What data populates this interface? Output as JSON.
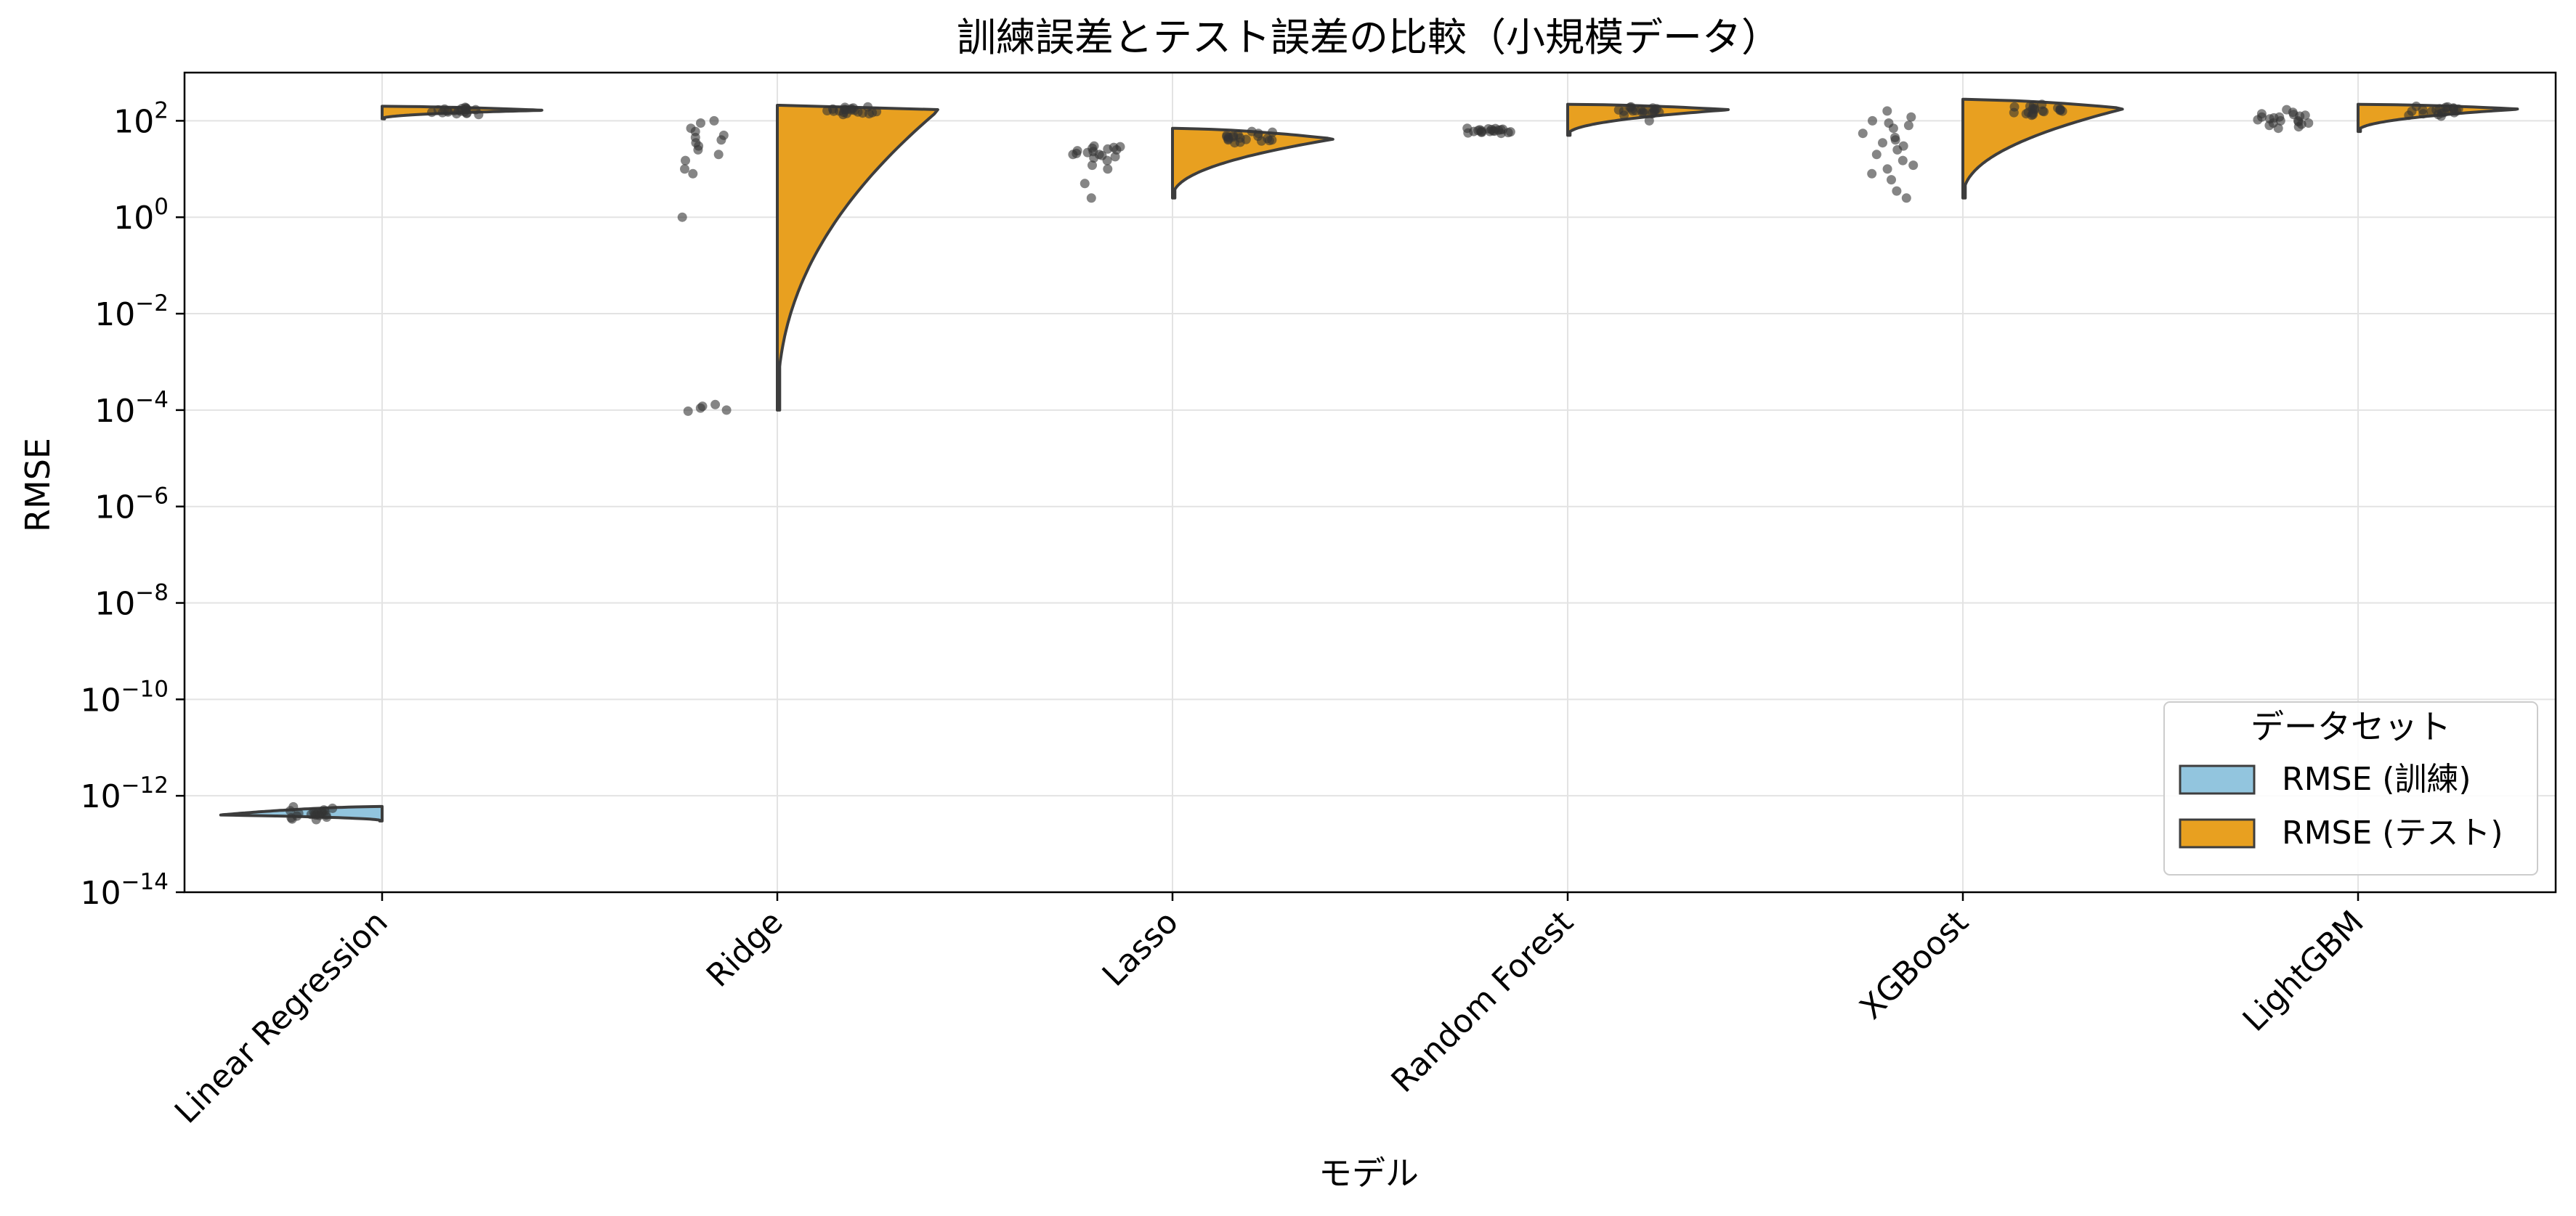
{
  "chart_data": {
    "type": "violin",
    "title": "訓練誤差とテスト誤差の比較（小規模データ）",
    "xlabel": "モデル",
    "ylabel": "RMSE",
    "yscale": "log",
    "ylim": [
      1e-14,
      1000
    ],
    "y_ticks": [
      {
        "value": 1e-14,
        "base": "10",
        "exp": "−14"
      },
      {
        "value": 1e-12,
        "base": "10",
        "exp": "−12"
      },
      {
        "value": 1e-10,
        "base": "10",
        "exp": "−10"
      },
      {
        "value": 1e-08,
        "base": "10",
        "exp": "−8"
      },
      {
        "value": 1e-06,
        "base": "10",
        "exp": "−6"
      },
      {
        "value": 0.0001,
        "base": "10",
        "exp": "−4"
      },
      {
        "value": 0.01,
        "base": "10",
        "exp": "−2"
      },
      {
        "value": 1,
        "base": "10",
        "exp": "0"
      },
      {
        "value": 100,
        "base": "10",
        "exp": "2"
      }
    ],
    "grid": true,
    "categories": [
      "Linear Regression",
      "Ridge",
      "Lasso",
      "Random Forest",
      "XGBoost",
      "LightGBM"
    ],
    "legend": {
      "title": "データセット",
      "placement": "lower-right",
      "entries": [
        {
          "label": "RMSE (訓練)",
          "color": "#92c5de"
        },
        {
          "label": "RMSE (テスト)",
          "color": "#e8a020"
        }
      ]
    },
    "series": [
      {
        "name": "RMSE (訓練)",
        "side": "left",
        "color": "#92c5de",
        "points": [
          [
            4.2e-13,
            3.8e-13,
            4.6e-13,
            5.5e-13,
            3.2e-13,
            4e-13,
            4.9e-13,
            3.6e-13,
            4.4e-13,
            5.1e-13,
            3.9e-13,
            4.3e-13,
            4.7e-13,
            3.5e-13,
            4.1e-13,
            5.9e-13,
            3.3e-13,
            4.5e-13,
            4e-13,
            4.8e-13
          ],
          [
            1.0,
            90,
            100,
            60,
            70,
            45,
            50,
            40,
            25,
            30,
            20,
            15,
            10,
            8,
            35,
            0.00012,
            0.0001,
            0.00011,
            0.00013,
            9.5e-05
          ],
          [
            30,
            25,
            28,
            22,
            20,
            18,
            26,
            24,
            19,
            21,
            15,
            12,
            10,
            5,
            2.5,
            27,
            23,
            29,
            17,
            20
          ],
          [
            65,
            60,
            55,
            70,
            62,
            58,
            68,
            63,
            57,
            66,
            61,
            59,
            64,
            67,
            56,
            69,
            60,
            62,
            65,
            58
          ],
          [
            160,
            120,
            100,
            90,
            80,
            70,
            55,
            45,
            40,
            35,
            30,
            25,
            20,
            15,
            12,
            10,
            8,
            6,
            3.5,
            2.5
          ],
          [
            170,
            150,
            140,
            130,
            120,
            110,
            100,
            95,
            90,
            85,
            80,
            75,
            70,
            120,
            105,
            115,
            135,
            125,
            100,
            90
          ]
        ],
        "violins": [
          {
            "min": 3e-13,
            "max": 6e-13,
            "peak": 4e-13
          },
          null,
          null,
          null,
          null,
          null
        ]
      },
      {
        "name": "RMSE (テスト)",
        "side": "right",
        "color": "#e8a020",
        "points": [
          [
            180,
            170,
            160,
            150,
            175,
            165,
            155,
            145,
            185,
            140,
            190,
            135,
            178,
            168,
            158,
            148,
            172,
            162,
            152,
            142
          ],
          [
            190,
            170,
            160,
            150,
            175,
            165,
            155,
            145,
            185,
            140,
            195,
            135,
            178,
            168,
            158,
            148,
            172,
            162,
            152,
            142
          ],
          [
            50,
            45,
            42,
            40,
            38,
            55,
            48,
            44,
            46,
            41,
            39,
            52,
            47,
            43,
            36,
            58,
            49,
            35,
            60,
            40
          ],
          [
            190,
            170,
            160,
            150,
            175,
            165,
            155,
            145,
            185,
            140,
            195,
            130,
            178,
            168,
            158,
            148,
            172,
            162,
            152,
            100
          ],
          [
            220,
            200,
            180,
            170,
            160,
            150,
            175,
            165,
            155,
            145,
            185,
            140,
            195,
            135,
            178,
            168,
            158,
            148,
            210,
            130
          ],
          [
            200,
            180,
            170,
            160,
            150,
            175,
            165,
            155,
            145,
            185,
            140,
            195,
            135,
            178,
            168,
            158,
            148,
            190,
            130,
            125
          ]
        ],
        "violins": [
          {
            "min": 110,
            "max": 200,
            "peak": 165
          },
          {
            "min": 0.0001,
            "max": 210,
            "peak": 170
          },
          {
            "min": 2.5,
            "max": 70,
            "peak": 42
          },
          {
            "min": 50,
            "max": 220,
            "peak": 170
          },
          {
            "min": 2.5,
            "max": 280,
            "peak": 180
          },
          {
            "min": 60,
            "max": 220,
            "peak": 175
          }
        ]
      }
    ]
  }
}
